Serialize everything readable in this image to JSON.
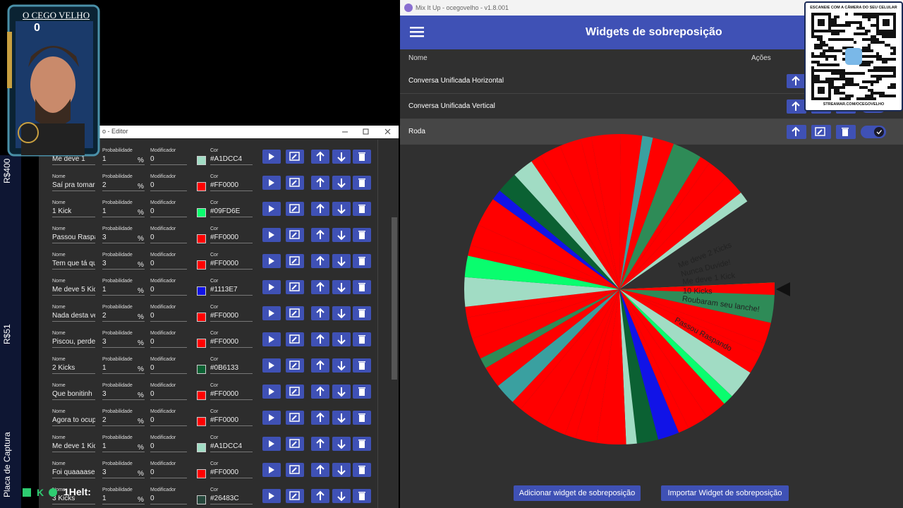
{
  "overlay": {
    "streamer_name": "O CEGO VELHO",
    "counter": "0",
    "sidebar": [
      "R$400",
      "R$51",
      "Placa de Captura"
    ],
    "chat": "1Helt:"
  },
  "editor": {
    "title": "o - Editor",
    "labels": {
      "name": "Nome",
      "prob": "Probabilidade",
      "pct": "%",
      "mod": "Modificador",
      "color": "Cor"
    },
    "rows": [
      {
        "name": "Me deve 1",
        "prob": 1,
        "mod": 0,
        "color": "#A1DCC4"
      },
      {
        "name": "Saí pra tomar",
        "prob": 2,
        "mod": 0,
        "color": "#FF0000"
      },
      {
        "name": "1 Kick",
        "prob": 1,
        "mod": 0,
        "color": "#09FD6E"
      },
      {
        "name": "Passou Raspa",
        "prob": 3,
        "mod": 0,
        "color": "#FF0000"
      },
      {
        "name": "Tem que tá qu",
        "prob": 3,
        "mod": 0,
        "color": "#FF0000"
      },
      {
        "name": "Me deve 5 Kic",
        "prob": 1,
        "mod": 0,
        "color": "#1113E7"
      },
      {
        "name": "Nada desta ve",
        "prob": 2,
        "mod": 0,
        "color": "#FF0000"
      },
      {
        "name": "Piscou, perde",
        "prob": 3,
        "mod": 0,
        "color": "#FF0000"
      },
      {
        "name": "2 Kicks",
        "prob": 1,
        "mod": 0,
        "color": "#0B6133"
      },
      {
        "name": "Que bonitinh",
        "prob": 3,
        "mod": 0,
        "color": "#FF0000"
      },
      {
        "name": "Agora to ocup",
        "prob": 2,
        "mod": 0,
        "color": "#FF0000"
      },
      {
        "name": "Me deve 1 Kic",
        "prob": 1,
        "mod": 0,
        "color": "#A1DCC4"
      },
      {
        "name": "Foi quaaaase",
        "prob": 3,
        "mod": 0,
        "color": "#FF0000"
      },
      {
        "name": "3 Kicks",
        "prob": 1,
        "mod": 0,
        "color": "#26483C"
      }
    ]
  },
  "app": {
    "window_title": "Mix It Up - ocegovelho - v1.8.001",
    "header": "Widgets de sobreposição",
    "columns": [
      "Nome",
      "Ações"
    ],
    "widgets": [
      "Conversa Unificada Horizontal",
      "Conversa Unificada Vertical",
      "Roda"
    ],
    "wheel_labels": [
      "10 Kicks",
      "Me deve 1 Kick",
      "Roubaram seu lanche!",
      "Nunca Duvide!",
      "Me deve 2 Kicks",
      "Passou Raspando"
    ],
    "buttons": [
      "Adicionar widget de sobreposição",
      "Importar Widget de sobreposição"
    ]
  },
  "qr": {
    "caption": "ESCANEIE COM A CÂMERA DO SEU CELULAR",
    "url": "STREAMAR.COM/OCEGOVELHO"
  }
}
